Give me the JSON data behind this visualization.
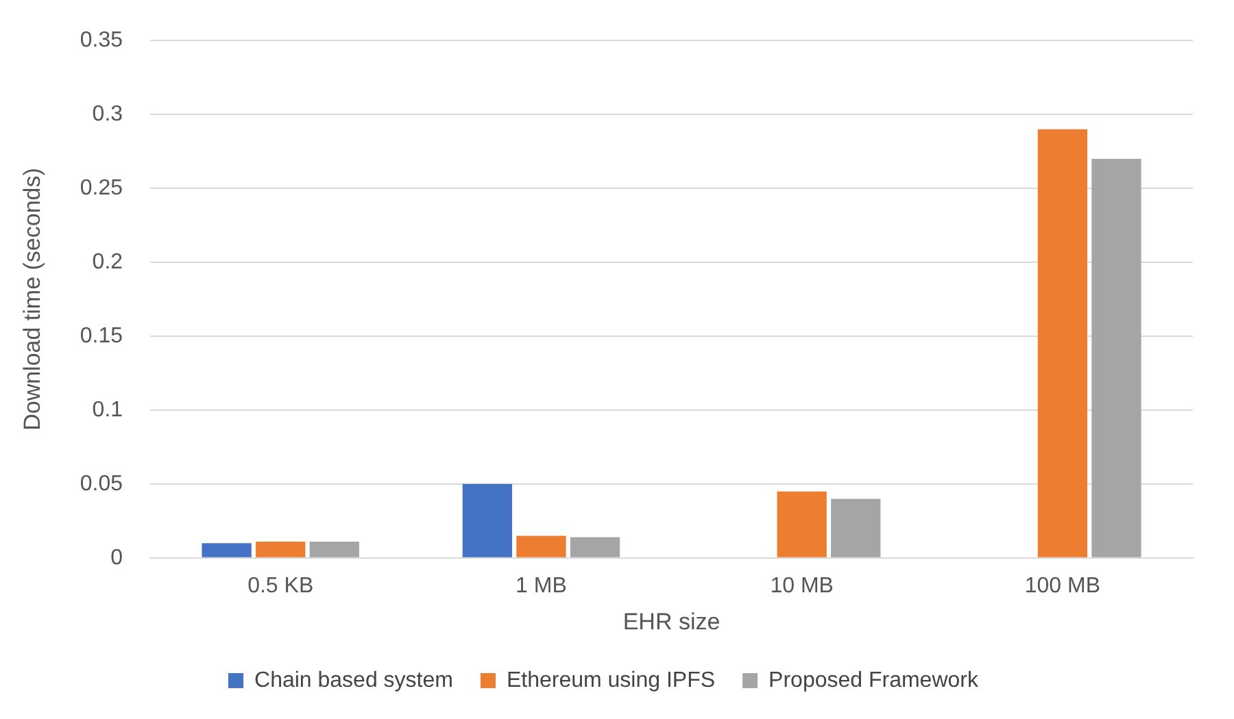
{
  "chart_data": {
    "type": "bar",
    "xlabel": "EHR size",
    "ylabel": "Download time (seconds)",
    "categories": [
      "0.5 KB",
      "1 MB",
      "10 MB",
      "100 MB"
    ],
    "series": [
      {
        "name": "Chain based system",
        "color": "#4472c4",
        "values": [
          0.01,
          0.05,
          null,
          null
        ]
      },
      {
        "name": "Ethereum using IPFS",
        "color": "#ed7d31",
        "values": [
          0.011,
          0.015,
          0.045,
          0.29
        ]
      },
      {
        "name": "Proposed Framework",
        "color": "#a5a5a5",
        "values": [
          0.011,
          0.014,
          0.04,
          0.27
        ]
      }
    ],
    "ylim": [
      0,
      0.35
    ],
    "yticks": [
      0,
      0.05,
      0.1,
      0.15,
      0.2,
      0.25,
      0.3,
      0.35
    ],
    "grid": "y",
    "legend": "bottom"
  }
}
